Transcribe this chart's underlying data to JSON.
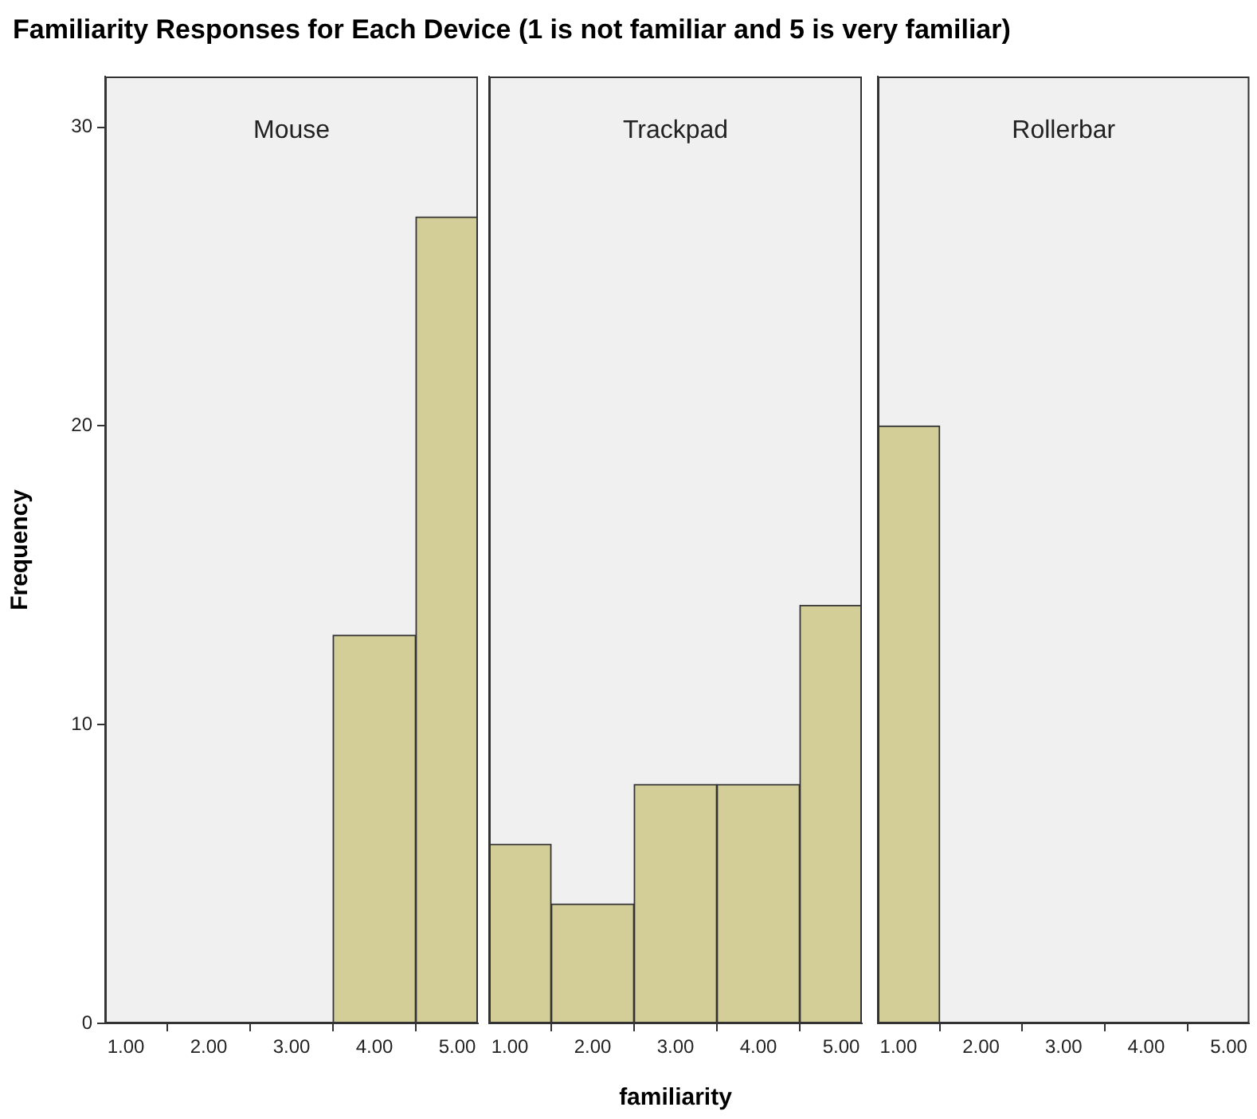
{
  "chart_data": [
    {
      "type": "histogram",
      "title": "Mouse",
      "ylabel": "Frequency",
      "annotations": [
        "Familiarity Responses for Each Device (1 is not familiar and 5 is very familiar)"
      ],
      "bins": [
        0.75,
        1.5,
        2.5,
        3.5,
        4.5,
        5.25
      ],
      "values": [
        0,
        0,
        0,
        13,
        27
      ],
      "color": "#d3ce98",
      "xlim": [
        0.75,
        5.25
      ],
      "xticks": [
        {
          "value": 1,
          "label": "1.00"
        },
        {
          "value": 2,
          "label": "2.00"
        },
        {
          "value": 3,
          "label": "3.00"
        },
        {
          "value": 4,
          "label": "4.00"
        },
        {
          "value": 5,
          "label": "5.00"
        }
      ],
      "ylim": [
        0,
        31.7
      ],
      "yticks": [
        0,
        10,
        20,
        30
      ],
      "grid": false,
      "legend": false
    },
    {
      "type": "histogram",
      "title": "Trackpad",
      "xlabel": "familiarity",
      "bins": [
        0.75,
        1.5,
        2.5,
        3.5,
        4.5,
        5.25
      ],
      "values": [
        6,
        4,
        8,
        8,
        14
      ],
      "color": "#d3ce98",
      "xlim": [
        0.75,
        5.25
      ],
      "xticks": [
        {
          "value": 1,
          "label": "1.00"
        },
        {
          "value": 2,
          "label": "2.00"
        },
        {
          "value": 3,
          "label": "3.00"
        },
        {
          "value": 4,
          "label": "4.00"
        },
        {
          "value": 5,
          "label": "5.00"
        }
      ],
      "ylim": [
        0,
        31.7
      ],
      "yticks": [
        0,
        10,
        20,
        30
      ],
      "grid": false,
      "legend": false,
      "tick_labels": "x"
    },
    {
      "type": "histogram",
      "title": "Rollerbar",
      "bins": [
        0.75,
        1.5,
        2.5,
        3.5,
        4.5,
        5.25
      ],
      "values": [
        20,
        0,
        0,
        0,
        0
      ],
      "color": "#d3ce98",
      "xlim": [
        0.75,
        5.25
      ],
      "xticks": [
        {
          "value": 1,
          "label": "1.00"
        },
        {
          "value": 2,
          "label": "2.00"
        },
        {
          "value": 3,
          "label": "3.00"
        },
        {
          "value": 4,
          "label": "4.00"
        },
        {
          "value": 5,
          "label": "5.00"
        }
      ],
      "ylim": [
        0,
        31.7
      ],
      "yticks": [
        0,
        10,
        20,
        30
      ],
      "grid": false,
      "legend": false,
      "tick_labels": "x"
    }
  ]
}
